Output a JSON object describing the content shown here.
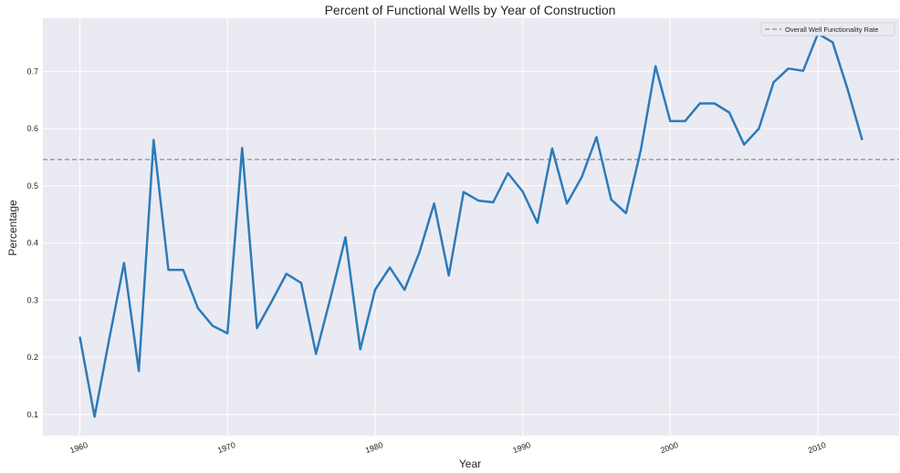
{
  "chart_data": {
    "type": "line",
    "title": "Percent of Functional Wells by Year of Construction",
    "xlabel": "Year",
    "ylabel": "Percentage",
    "xlim": [
      1957.5,
      2015.5
    ],
    "ylim": [
      0.063,
      0.793
    ],
    "x_ticks": [
      1960,
      1970,
      1980,
      1990,
      2000,
      2010
    ],
    "y_ticks": [
      0.1,
      0.2,
      0.3,
      0.4,
      0.5,
      0.6,
      0.7
    ],
    "grid": true,
    "legend_position": "top-right",
    "reference_line": {
      "label": "Overall Well Functionality Rate",
      "value": 0.546,
      "color": "#8c8c8c"
    },
    "series": [
      {
        "color": "#2b7bba",
        "x": [
          1960,
          1961,
          1962,
          1963,
          1964,
          1965,
          1966,
          1967,
          1968,
          1969,
          1970,
          1971,
          1972,
          1973,
          1974,
          1975,
          1976,
          1977,
          1978,
          1979,
          1980,
          1981,
          1982,
          1983,
          1984,
          1985,
          1986,
          1987,
          1988,
          1989,
          1990,
          1991,
          1992,
          1993,
          1994,
          1995,
          1996,
          1997,
          1998,
          1999,
          2000,
          2001,
          2002,
          2003,
          2004,
          2005,
          2006,
          2007,
          2008,
          2009,
          2010,
          2011,
          2012,
          2013
        ],
        "y": [
          0.236,
          0.096,
          0.233,
          0.365,
          0.176,
          0.58,
          0.353,
          0.353,
          0.286,
          0.255,
          0.242,
          0.566,
          0.251,
          0.298,
          0.346,
          0.33,
          0.206,
          0.306,
          0.41,
          0.214,
          0.318,
          0.357,
          0.318,
          0.383,
          0.469,
          0.343,
          0.489,
          0.474,
          0.471,
          0.522,
          0.49,
          0.435,
          0.565,
          0.469,
          0.515,
          0.585,
          0.476,
          0.452,
          0.562,
          0.709,
          0.613,
          0.613,
          0.644,
          0.644,
          0.628,
          0.572,
          0.6,
          0.681,
          0.705,
          0.701,
          0.766,
          0.751,
          0.67,
          0.58
        ]
      }
    ]
  }
}
